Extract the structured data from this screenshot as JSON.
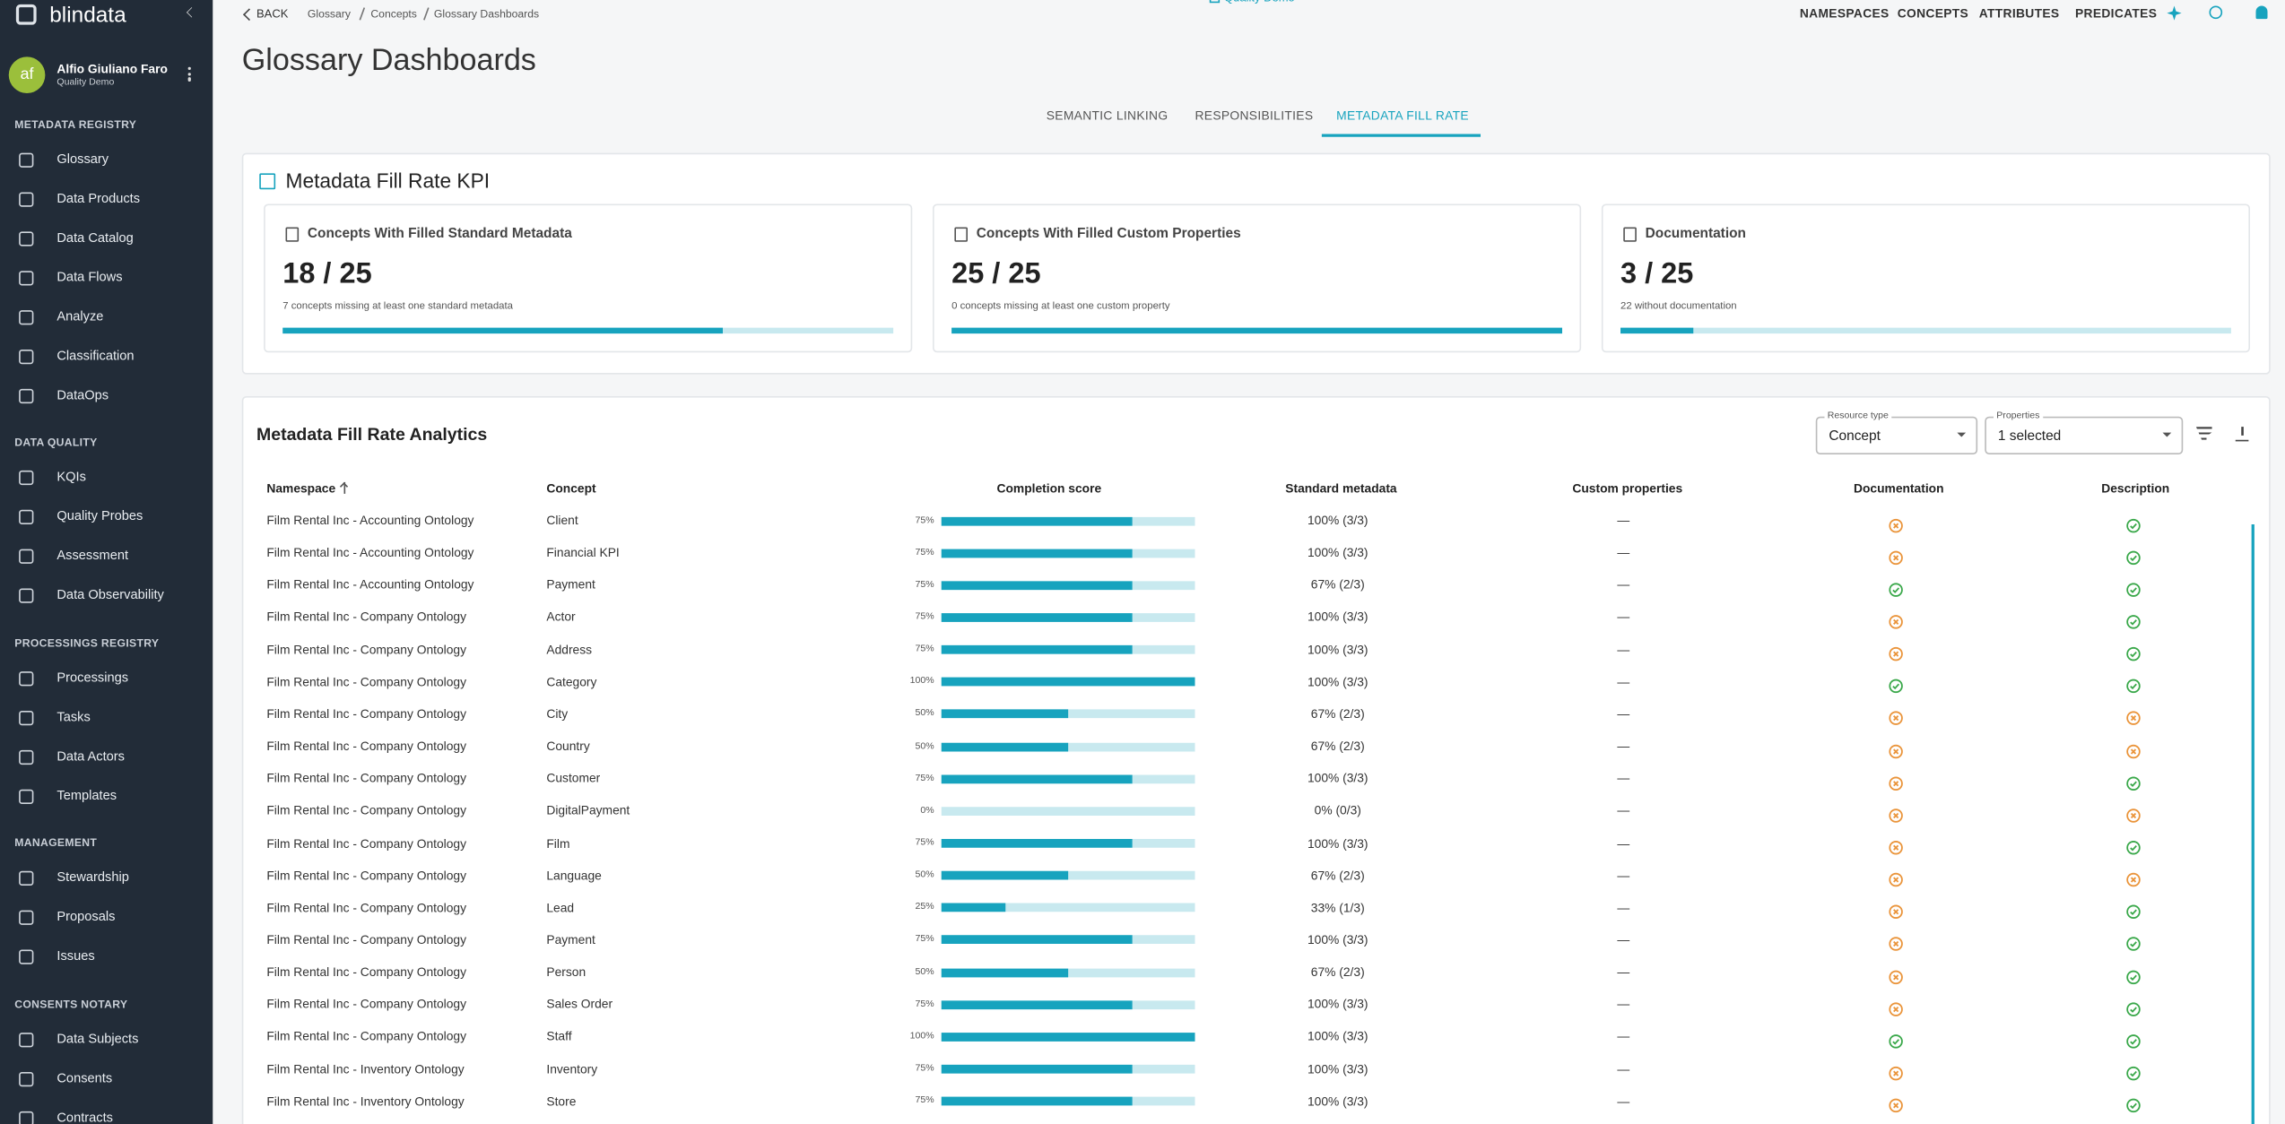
{
  "logo": "blindata",
  "user": {
    "initials": "af",
    "name": "Alfio Giuliano Faro",
    "tenant": "Quality Demo"
  },
  "sidebar": [
    {
      "heading": "METADATA REGISTRY",
      "items": [
        "Glossary",
        "Data Products",
        "Data Catalog",
        "Data Flows",
        "Analyze",
        "Classification",
        "DataOps"
      ]
    },
    {
      "heading": "DATA QUALITY",
      "items": [
        "KQIs",
        "Quality Probes",
        "Assessment",
        "Data Observability"
      ]
    },
    {
      "heading": "PROCESSINGS REGISTRY",
      "items": [
        "Processings",
        "Tasks",
        "Data Actors",
        "Templates"
      ]
    },
    {
      "heading": "MANAGEMENT",
      "items": [
        "Stewardship",
        "Proposals",
        "Issues"
      ]
    },
    {
      "heading": "CONSENTS NOTARY",
      "items": [
        "Data Subjects",
        "Consents",
        "Contracts"
      ]
    }
  ],
  "topbar": {
    "back": "BACK",
    "breadcrumb": [
      "Glossary",
      "Concepts",
      "Glossary Dashboards"
    ],
    "tenant": "Quality Demo",
    "nav": [
      "NAMESPACES",
      "CONCEPTS",
      "ATTRIBUTES",
      "PREDICATES"
    ]
  },
  "title": "Glossary Dashboards",
  "tabs": {
    "items": [
      "SEMANTIC LINKING",
      "RESPONSIBILITIES",
      "METADATA FILL RATE"
    ],
    "active": 2
  },
  "kpi": {
    "title": "Metadata Fill Rate KPI",
    "cards": [
      {
        "title": "Concepts With Filled Standard Metadata",
        "value_label": "18 / 25",
        "filled": 18,
        "total": 25,
        "note": "7 concepts missing at least one standard metadata"
      },
      {
        "title": "Concepts With Filled Custom Properties",
        "value_label": "25 / 25",
        "filled": 25,
        "total": 25,
        "note": "0 concepts missing at least one custom property"
      },
      {
        "title": "Documentation",
        "value_label": "3 / 25",
        "filled": 3,
        "total": 25,
        "note": "22 without documentation"
      }
    ]
  },
  "analytics": {
    "title": "Metadata Fill Rate Analytics",
    "filters": [
      {
        "label": "Resource type",
        "value": "Concept"
      },
      {
        "label": "Properties",
        "value": "1 selected"
      }
    ],
    "columns": [
      "Namespace",
      "Concept",
      "Completion score",
      "Standard metadata",
      "Custom properties",
      "Documentation",
      "Description"
    ],
    "rows": [
      {
        "namespace": "Film Rental Inc - Accounting Ontology",
        "concept": "Client",
        "completion": {
          "value": 75,
          "label": "75%"
        },
        "standard": "100% (3/3)",
        "custom": "—",
        "documentation": false,
        "description": true
      },
      {
        "namespace": "Film Rental Inc - Accounting Ontology",
        "concept": "Financial KPI",
        "completion": {
          "value": 75,
          "label": "75%"
        },
        "standard": "100% (3/3)",
        "custom": "—",
        "documentation": false,
        "description": true
      },
      {
        "namespace": "Film Rental Inc - Accounting Ontology",
        "concept": "Payment",
        "completion": {
          "value": 75,
          "label": "75%"
        },
        "standard": "67% (2/3)",
        "custom": "—",
        "documentation": true,
        "description": true
      },
      {
        "namespace": "Film Rental Inc - Company Ontology",
        "concept": "Actor",
        "completion": {
          "value": 75,
          "label": "75%"
        },
        "standard": "100% (3/3)",
        "custom": "—",
        "documentation": false,
        "description": true
      },
      {
        "namespace": "Film Rental Inc - Company Ontology",
        "concept": "Address",
        "completion": {
          "value": 75,
          "label": "75%"
        },
        "standard": "100% (3/3)",
        "custom": "—",
        "documentation": false,
        "description": true
      },
      {
        "namespace": "Film Rental Inc - Company Ontology",
        "concept": "Category",
        "completion": {
          "value": 100,
          "label": "100%"
        },
        "standard": "100% (3/3)",
        "custom": "—",
        "documentation": true,
        "description": true
      },
      {
        "namespace": "Film Rental Inc - Company Ontology",
        "concept": "City",
        "completion": {
          "value": 50,
          "label": "50%"
        },
        "standard": "67% (2/3)",
        "custom": "—",
        "documentation": false,
        "description": false
      },
      {
        "namespace": "Film Rental Inc - Company Ontology",
        "concept": "Country",
        "completion": {
          "value": 50,
          "label": "50%"
        },
        "standard": "67% (2/3)",
        "custom": "—",
        "documentation": false,
        "description": false
      },
      {
        "namespace": "Film Rental Inc - Company Ontology",
        "concept": "Customer",
        "completion": {
          "value": 75,
          "label": "75%"
        },
        "standard": "100% (3/3)",
        "custom": "—",
        "documentation": false,
        "description": true
      },
      {
        "namespace": "Film Rental Inc - Company Ontology",
        "concept": "DigitalPayment",
        "completion": {
          "value": 0,
          "label": "0%"
        },
        "standard": "0% (0/3)",
        "custom": "—",
        "documentation": false,
        "description": false
      },
      {
        "namespace": "Film Rental Inc - Company Ontology",
        "concept": "Film",
        "completion": {
          "value": 75,
          "label": "75%"
        },
        "standard": "100% (3/3)",
        "custom": "—",
        "documentation": false,
        "description": true
      },
      {
        "namespace": "Film Rental Inc - Company Ontology",
        "concept": "Language",
        "completion": {
          "value": 50,
          "label": "50%"
        },
        "standard": "67% (2/3)",
        "custom": "—",
        "documentation": false,
        "description": false
      },
      {
        "namespace": "Film Rental Inc - Company Ontology",
        "concept": "Lead",
        "completion": {
          "value": 25,
          "label": "25%"
        },
        "standard": "33% (1/3)",
        "custom": "—",
        "documentation": false,
        "description": true
      },
      {
        "namespace": "Film Rental Inc - Company Ontology",
        "concept": "Payment",
        "completion": {
          "value": 75,
          "label": "75%"
        },
        "standard": "100% (3/3)",
        "custom": "—",
        "documentation": false,
        "description": true
      },
      {
        "namespace": "Film Rental Inc - Company Ontology",
        "concept": "Person",
        "completion": {
          "value": 50,
          "label": "50%"
        },
        "standard": "67% (2/3)",
        "custom": "—",
        "documentation": false,
        "description": true
      },
      {
        "namespace": "Film Rental Inc - Company Ontology",
        "concept": "Sales Order",
        "completion": {
          "value": 75,
          "label": "75%"
        },
        "standard": "100% (3/3)",
        "custom": "—",
        "documentation": false,
        "description": true
      },
      {
        "namespace": "Film Rental Inc - Company Ontology",
        "concept": "Staff",
        "completion": {
          "value": 100,
          "label": "100%"
        },
        "standard": "100% (3/3)",
        "custom": "—",
        "documentation": true,
        "description": true
      },
      {
        "namespace": "Film Rental Inc - Inventory Ontology",
        "concept": "Inventory",
        "completion": {
          "value": 75,
          "label": "75%"
        },
        "standard": "100% (3/3)",
        "custom": "—",
        "documentation": false,
        "description": true
      },
      {
        "namespace": "Film Rental Inc - Inventory Ontology",
        "concept": "Store",
        "completion": {
          "value": 75,
          "label": "75%"
        },
        "standard": "100% (3/3)",
        "custom": "—",
        "documentation": false,
        "description": true
      }
    ]
  }
}
